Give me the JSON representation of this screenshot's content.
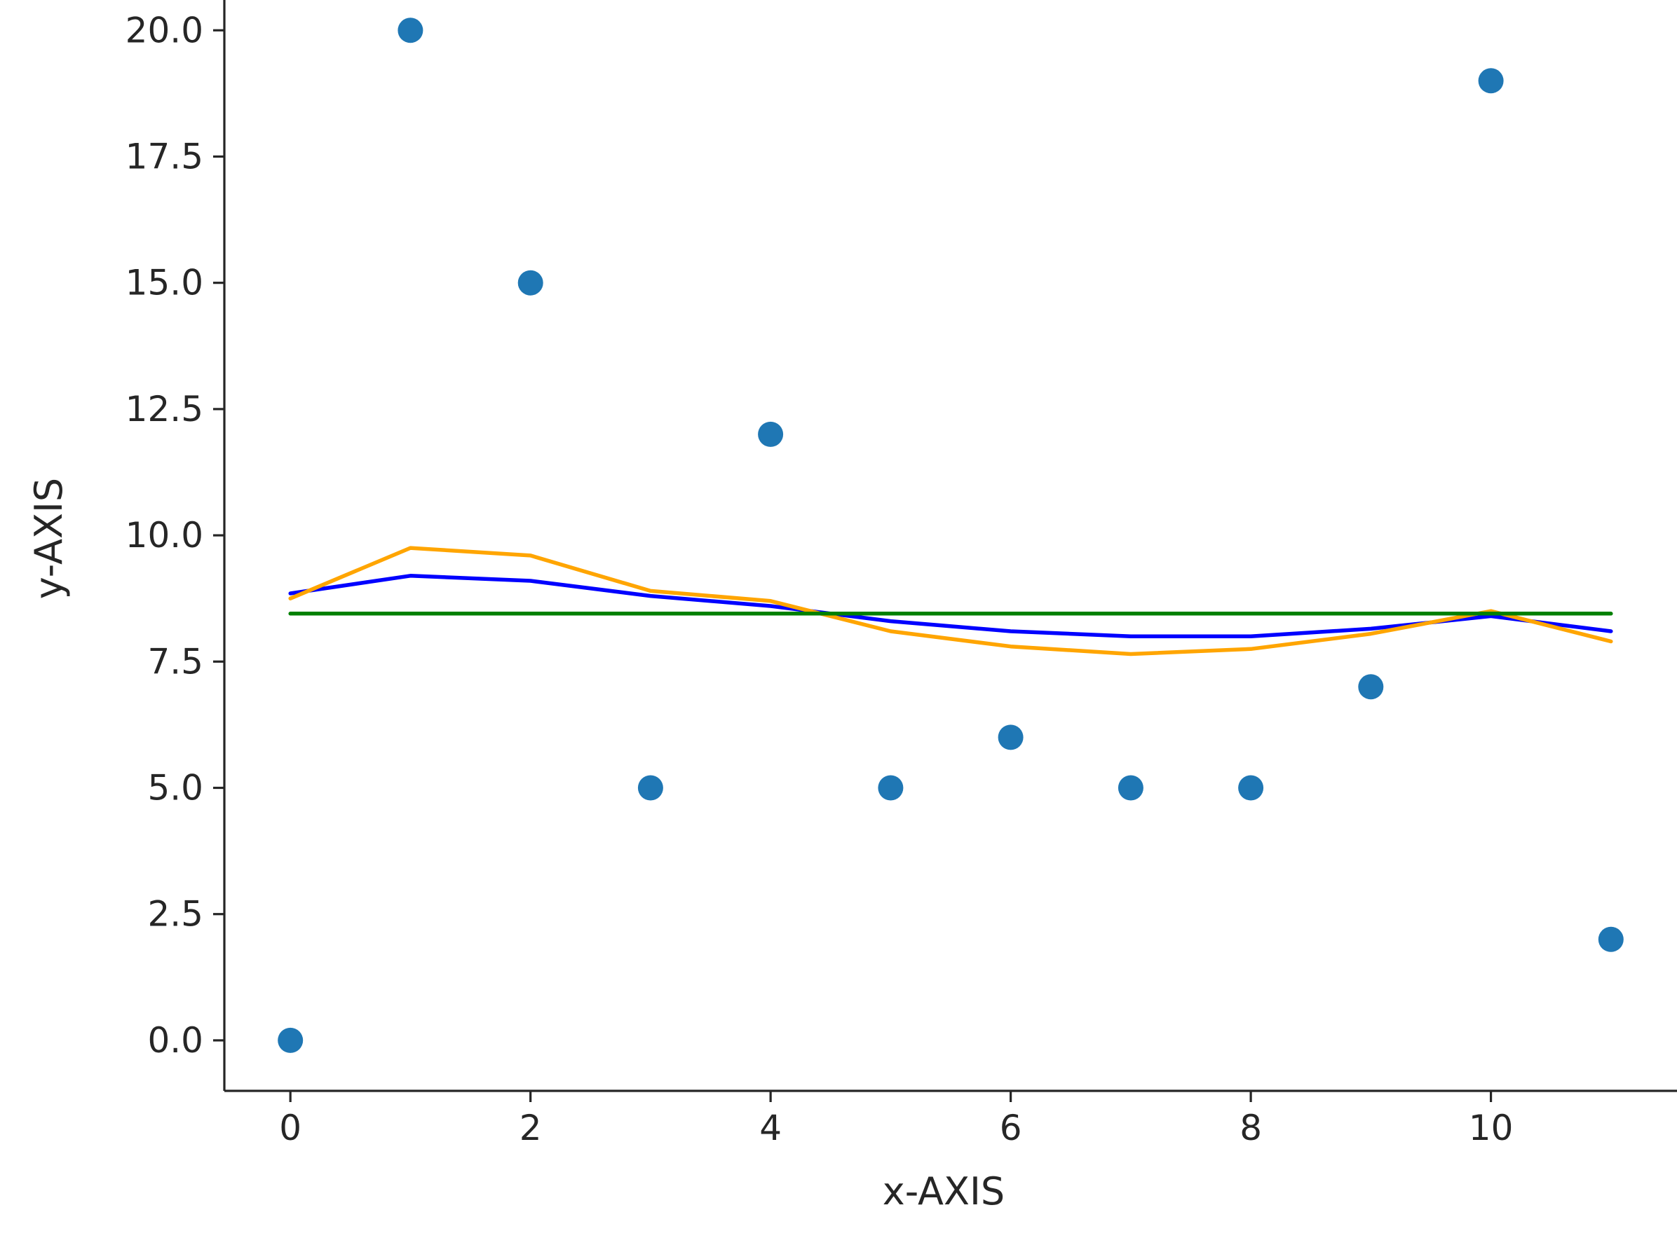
{
  "chart_data": {
    "type": "scatter",
    "title": "",
    "xlabel": "x-AXIS",
    "ylabel": "y-AXIS",
    "xlim": [
      -0.55,
      11.55
    ],
    "ylim": [
      -1.0,
      20.6
    ],
    "grid": false,
    "legend": "none",
    "x_ticks": [
      0,
      2,
      4,
      6,
      8,
      10
    ],
    "x_tick_labels": [
      "0",
      "2",
      "4",
      "6",
      "8",
      "10"
    ],
    "y_ticks": [
      0.0,
      2.5,
      5.0,
      7.5,
      10.0,
      12.5,
      15.0,
      17.5,
      20.0
    ],
    "y_tick_labels": [
      "0.0",
      "2.5",
      "5.0",
      "7.5",
      "10.0",
      "12.5",
      "15.0",
      "17.5",
      "20.0"
    ],
    "scatter": {
      "color": "#1f77b4",
      "x": [
        0,
        1,
        2,
        3,
        4,
        5,
        6,
        7,
        8,
        9,
        10,
        11
      ],
      "y": [
        0,
        20,
        15,
        5,
        12,
        5,
        6,
        5,
        5,
        7,
        19,
        2
      ]
    },
    "series": [
      {
        "color": "#0000ff",
        "x": [
          0,
          1,
          2,
          3,
          4,
          5,
          6,
          7,
          8,
          9,
          10,
          11
        ],
        "y": [
          8.85,
          9.2,
          9.1,
          8.8,
          8.6,
          8.3,
          8.1,
          8.0,
          8.0,
          8.15,
          8.4,
          8.1
        ]
      },
      {
        "color": "#ffa500",
        "x": [
          0,
          1,
          2,
          3,
          4,
          5,
          6,
          7,
          8,
          9,
          10,
          11
        ],
        "y": [
          8.75,
          9.75,
          9.6,
          8.9,
          8.7,
          8.1,
          7.8,
          7.65,
          7.75,
          8.05,
          8.5,
          7.9
        ]
      },
      {
        "color": "#008000",
        "x": [
          0,
          11
        ],
        "y": [
          8.45,
          8.45
        ]
      }
    ]
  }
}
